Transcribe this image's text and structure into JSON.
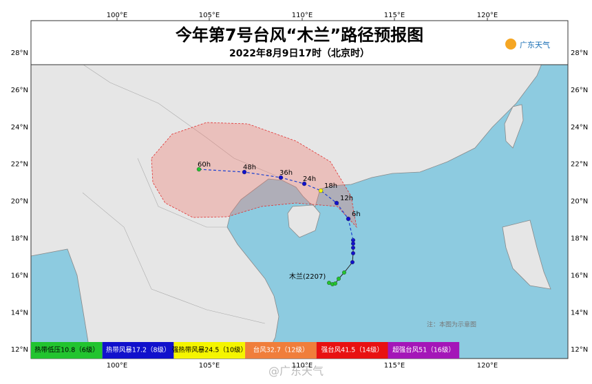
{
  "header": {
    "title": "今年第7号台风“木兰”路径预报图",
    "subtitle": "2022年8月9日17时（北京时）",
    "logo": "广东天气"
  },
  "axes": {
    "lon_labels": [
      "100°E",
      "105°E",
      "110°E",
      "115°E",
      "120°E"
    ],
    "lat_labels": [
      "28°N",
      "26°N",
      "24°N",
      "22°N",
      "20°N",
      "18°N",
      "16°N",
      "14°N",
      "12°N"
    ]
  },
  "track": {
    "labels": [
      "60h",
      "48h",
      "36h",
      "24h",
      "18h",
      "12h",
      "6h"
    ],
    "name": "木兰(2207)"
  },
  "note": "注：本图为示意图",
  "legend": [
    "热带低压10.8（6级）",
    "热带风暴17.2（8级）",
    "强热带风暴24.5（10级）",
    "台风32.7（12级）",
    "强台风41.5（14级）",
    "超强台风51（16级）"
  ],
  "watermark": "@广东天气"
}
